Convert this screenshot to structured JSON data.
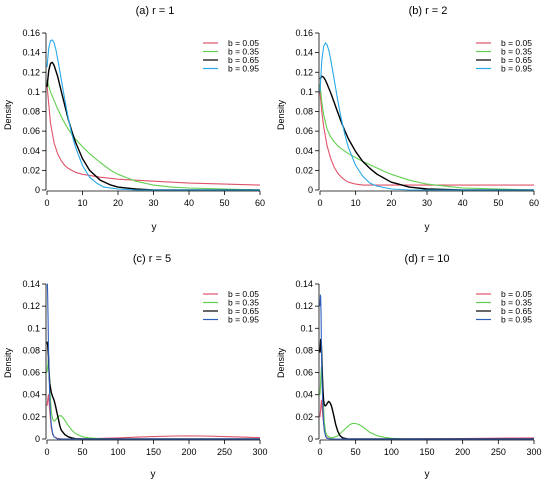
{
  "colors": {
    "b_0.05": "#DF536B",
    "b_0.35": "#61D04F",
    "b_0.65": "#000000",
    "b_0.95": "#28A9E8",
    "b_0.95_alt": "#2E5FBE"
  },
  "legend_labels": [
    "b = 0.05",
    "b = 0.35",
    "b = 0.65",
    "b = 0.95"
  ],
  "chart_data": [
    {
      "type": "line",
      "title": "(a) r = 1",
      "xlabel": "y",
      "ylabel": "Density",
      "xlim": [
        0,
        60
      ],
      "ylim": [
        0,
        0.16
      ],
      "xticks": [
        0,
        10,
        20,
        30,
        40,
        50,
        60
      ],
      "yticks": [
        0,
        0.02,
        0.04,
        0.06,
        0.08,
        0.1,
        0.12,
        0.14,
        0.16
      ],
      "legend": "top-right",
      "series": [
        {
          "name": "b = 0.05",
          "x": [
            0,
            1,
            2,
            3,
            4,
            5,
            6,
            8,
            10,
            15,
            20,
            30,
            40,
            50,
            60
          ],
          "y": [
            0.107,
            0.068,
            0.048,
            0.037,
            0.03,
            0.025,
            0.022,
            0.018,
            0.016,
            0.013,
            0.011,
            0.009,
            0.007,
            0.006,
            0.005
          ]
        },
        {
          "name": "b = 0.35",
          "x": [
            0,
            1,
            2,
            3,
            4,
            5,
            6,
            8,
            10,
            12,
            15,
            18,
            20,
            25,
            30,
            35,
            40,
            50,
            60
          ],
          "y": [
            0.112,
            0.1,
            0.091,
            0.083,
            0.075,
            0.068,
            0.062,
            0.052,
            0.044,
            0.037,
            0.028,
            0.02,
            0.016,
            0.009,
            0.005,
            0.003,
            0.002,
            0.001,
            0.0
          ]
        },
        {
          "name": "b = 0.65",
          "x": [
            0,
            0.5,
            1,
            1.5,
            2,
            3,
            4,
            5,
            6,
            7,
            8,
            10,
            12,
            15,
            18,
            20,
            25,
            30,
            40,
            60
          ],
          "y": [
            0.105,
            0.122,
            0.129,
            0.13,
            0.127,
            0.116,
            0.101,
            0.086,
            0.072,
            0.06,
            0.049,
            0.032,
            0.02,
            0.01,
            0.005,
            0.003,
            0.001,
            0.0,
            0.0,
            0.0
          ]
        },
        {
          "name": "b = 0.95",
          "x": [
            0,
            0.5,
            1,
            1.5,
            2,
            2.5,
            3,
            4,
            5,
            6,
            7,
            8,
            10,
            12,
            14,
            16,
            20,
            25,
            30,
            60
          ],
          "y": [
            0.125,
            0.145,
            0.152,
            0.153,
            0.15,
            0.143,
            0.134,
            0.113,
            0.092,
            0.073,
            0.057,
            0.044,
            0.025,
            0.013,
            0.007,
            0.003,
            0.001,
            0.0,
            0.0,
            0.0
          ]
        }
      ]
    },
    {
      "type": "line",
      "title": "(b) r = 2",
      "xlabel": "y",
      "ylabel": "Density",
      "xlim": [
        0,
        60
      ],
      "ylim": [
        0,
        0.16
      ],
      "xticks": [
        0,
        10,
        20,
        30,
        40,
        50,
        60
      ],
      "yticks": [
        0,
        0.02,
        0.04,
        0.06,
        0.08,
        0.1,
        0.12,
        0.14,
        0.16
      ],
      "legend": "top-right",
      "series": [
        {
          "name": "b = 0.05",
          "x": [
            0,
            0.5,
            1,
            2,
            3,
            4,
            5,
            6,
            7,
            8,
            10,
            12,
            15,
            20,
            25,
            30,
            40,
            50,
            60
          ],
          "y": [
            0.1,
            0.08,
            0.065,
            0.045,
            0.032,
            0.023,
            0.017,
            0.013,
            0.01,
            0.008,
            0.006,
            0.005,
            0.005,
            0.005,
            0.005,
            0.005,
            0.005,
            0.005,
            0.005
          ]
        },
        {
          "name": "b = 0.35",
          "x": [
            0,
            0.5,
            1,
            2,
            3,
            4,
            5,
            6,
            8,
            10,
            12,
            15,
            18,
            20,
            25,
            30,
            35,
            40,
            50,
            60
          ],
          "y": [
            0.108,
            0.09,
            0.077,
            0.062,
            0.054,
            0.049,
            0.045,
            0.042,
            0.037,
            0.033,
            0.029,
            0.024,
            0.019,
            0.016,
            0.01,
            0.006,
            0.004,
            0.002,
            0.001,
            0.0
          ]
        },
        {
          "name": "b = 0.65",
          "x": [
            0,
            0.5,
            1,
            1.5,
            2,
            3,
            4,
            5,
            6,
            7,
            8,
            10,
            12,
            14,
            16,
            18,
            20,
            22,
            25,
            30,
            40,
            60
          ],
          "y": [
            0.113,
            0.116,
            0.115,
            0.112,
            0.108,
            0.099,
            0.089,
            0.079,
            0.069,
            0.06,
            0.052,
            0.039,
            0.029,
            0.022,
            0.016,
            0.012,
            0.008,
            0.006,
            0.003,
            0.001,
            0.0,
            0.0
          ]
        },
        {
          "name": "b = 0.95",
          "x": [
            0,
            0.5,
            1,
            1.5,
            2,
            2.5,
            3,
            4,
            5,
            6,
            7,
            8,
            10,
            12,
            14,
            16,
            20,
            25,
            30,
            60
          ],
          "y": [
            0.1,
            0.132,
            0.146,
            0.15,
            0.148,
            0.142,
            0.133,
            0.112,
            0.091,
            0.072,
            0.056,
            0.043,
            0.025,
            0.014,
            0.007,
            0.004,
            0.001,
            0.0,
            0.0,
            0.0
          ]
        }
      ]
    },
    {
      "type": "line",
      "title": "(c) r = 5",
      "xlabel": "y",
      "ylabel": "Density",
      "xlim": [
        0,
        300
      ],
      "ylim": [
        0,
        0.14
      ],
      "xticks": [
        0,
        50,
        100,
        150,
        200,
        250,
        300
      ],
      "yticks": [
        0,
        0.02,
        0.04,
        0.06,
        0.08,
        0.1,
        0.12,
        0.14
      ],
      "legend": "top-right",
      "series": [
        {
          "name": "b = 0.05",
          "x": [
            0,
            2,
            4,
            6,
            8,
            10,
            15,
            20,
            40,
            60,
            80,
            100,
            120,
            150,
            180,
            200,
            220,
            250,
            280,
            300
          ],
          "y": [
            0.03,
            0.04,
            0.025,
            0.01,
            0.004,
            0.002,
            0.0005,
            0.0002,
            0.0001,
            0.0003,
            0.0006,
            0.001,
            0.0015,
            0.0022,
            0.0027,
            0.0028,
            0.0027,
            0.0022,
            0.0016,
            0.0012
          ]
        },
        {
          "name": "b = 0.35",
          "x": [
            0,
            2,
            4,
            6,
            8,
            10,
            12,
            14,
            17,
            20,
            23,
            26,
            30,
            35,
            40,
            50,
            60,
            70,
            80,
            100,
            150,
            300
          ],
          "y": [
            0.06,
            0.072,
            0.045,
            0.025,
            0.018,
            0.016,
            0.017,
            0.019,
            0.021,
            0.021,
            0.019,
            0.016,
            0.012,
            0.008,
            0.005,
            0.002,
            0.001,
            0.0005,
            0.0002,
            0.0,
            0.0,
            0.0
          ]
        },
        {
          "name": "b = 0.65",
          "x": [
            0,
            1,
            2,
            3,
            4,
            6,
            8,
            10,
            12,
            14,
            16,
            18,
            20,
            25,
            30,
            35,
            40,
            50,
            300
          ],
          "y": [
            0.088,
            0.085,
            0.075,
            0.06,
            0.05,
            0.042,
            0.038,
            0.035,
            0.03,
            0.024,
            0.018,
            0.012,
            0.008,
            0.004,
            0.002,
            0.001,
            0.0003,
            0.0,
            0.0
          ]
        },
        {
          "name": "b = 0.95",
          "x": [
            0,
            0.5,
            1,
            1.5,
            2,
            3,
            4,
            5,
            6,
            8,
            10,
            15,
            20,
            300
          ],
          "y": [
            0.14,
            0.14,
            0.128,
            0.108,
            0.088,
            0.058,
            0.036,
            0.022,
            0.013,
            0.005,
            0.002,
            0.0,
            0.0,
            0.0
          ]
        }
      ]
    },
    {
      "type": "line",
      "title": "(d) r = 10",
      "xlabel": "y",
      "ylabel": "Density",
      "xlim": [
        0,
        300
      ],
      "ylim": [
        0,
        0.14
      ],
      "xticks": [
        0,
        50,
        100,
        150,
        200,
        250,
        300
      ],
      "yticks": [
        0,
        0.02,
        0.04,
        0.06,
        0.08,
        0.1,
        0.12,
        0.14
      ],
      "legend": "top-right",
      "series": [
        {
          "name": "b = 0.05",
          "x": [
            0,
            2,
            4,
            6,
            8,
            10,
            15,
            20,
            40,
            60,
            100,
            150,
            200,
            250,
            280,
            300
          ],
          "y": [
            0.02,
            0.035,
            0.02,
            0.008,
            0.003,
            0.001,
            0.0003,
            0.0001,
            0.0,
            0.0,
            0.0,
            0.0002,
            0.0004,
            0.0007,
            0.0009,
            0.001
          ]
        },
        {
          "name": "b = 0.35",
          "x": [
            0,
            2,
            4,
            6,
            8,
            10,
            15,
            20,
            25,
            30,
            35,
            40,
            45,
            50,
            55,
            60,
            70,
            80,
            90,
            100,
            120,
            300
          ],
          "y": [
            0.04,
            0.065,
            0.04,
            0.015,
            0.006,
            0.003,
            0.001,
            0.0015,
            0.003,
            0.006,
            0.009,
            0.012,
            0.014,
            0.014,
            0.013,
            0.011,
            0.006,
            0.003,
            0.0015,
            0.0006,
            0.0,
            0.0
          ]
        },
        {
          "name": "b = 0.65",
          "x": [
            0,
            1,
            2,
            3,
            4,
            5,
            6,
            7,
            8,
            10,
            12,
            14,
            16,
            18,
            20,
            22,
            25,
            28,
            32,
            40,
            300
          ],
          "y": [
            0.078,
            0.09,
            0.085,
            0.065,
            0.045,
            0.035,
            0.031,
            0.03,
            0.03,
            0.032,
            0.034,
            0.033,
            0.03,
            0.025,
            0.019,
            0.013,
            0.007,
            0.003,
            0.001,
            0.0,
            0.0
          ]
        },
        {
          "name": "b = 0.95",
          "x": [
            0,
            0.5,
            1,
            1.5,
            2,
            3,
            4,
            5,
            6,
            8,
            10,
            15,
            300
          ],
          "y": [
            0.12,
            0.13,
            0.128,
            0.11,
            0.085,
            0.05,
            0.028,
            0.015,
            0.008,
            0.002,
            0.0005,
            0.0,
            0.0
          ]
        }
      ]
    }
  ]
}
